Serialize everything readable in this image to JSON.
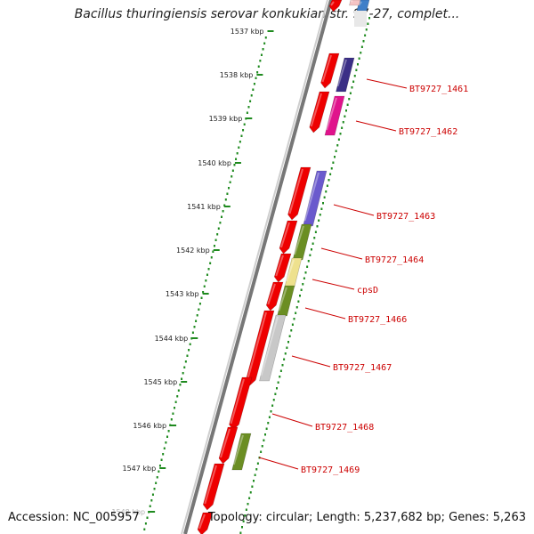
{
  "header": {
    "title": "Bacillus thuringiensis serovar konkukian str. 97-27, complet..."
  },
  "footer": {
    "accession": "Accession: NC_005957",
    "summary": "Topology: circular; Length: 5,237,682 bp; Genes: 5,263"
  },
  "colors": {
    "cds": "#ee0000",
    "dots": "#1e8a1e",
    "backbone": "#777777",
    "label": "#cc0000",
    "tick_text": "#222222"
  },
  "ticks": [
    "1537 kbp",
    "1538 kbp",
    "1539 kbp",
    "1540 kbp",
    "1541 kbp",
    "1542 kbp",
    "1543 kbp",
    "1544 kbp",
    "1545 kbp",
    "1546 kbp",
    "1547 kbp",
    "1548 kbp"
  ],
  "gene_labels": [
    "BT9727_1461",
    "BT9727_1462",
    "BT9727_1463",
    "BT9727_1464",
    "cpsD",
    "BT9727_1466",
    "BT9727_1467",
    "BT9727_1468",
    "BT9727_1469"
  ]
}
